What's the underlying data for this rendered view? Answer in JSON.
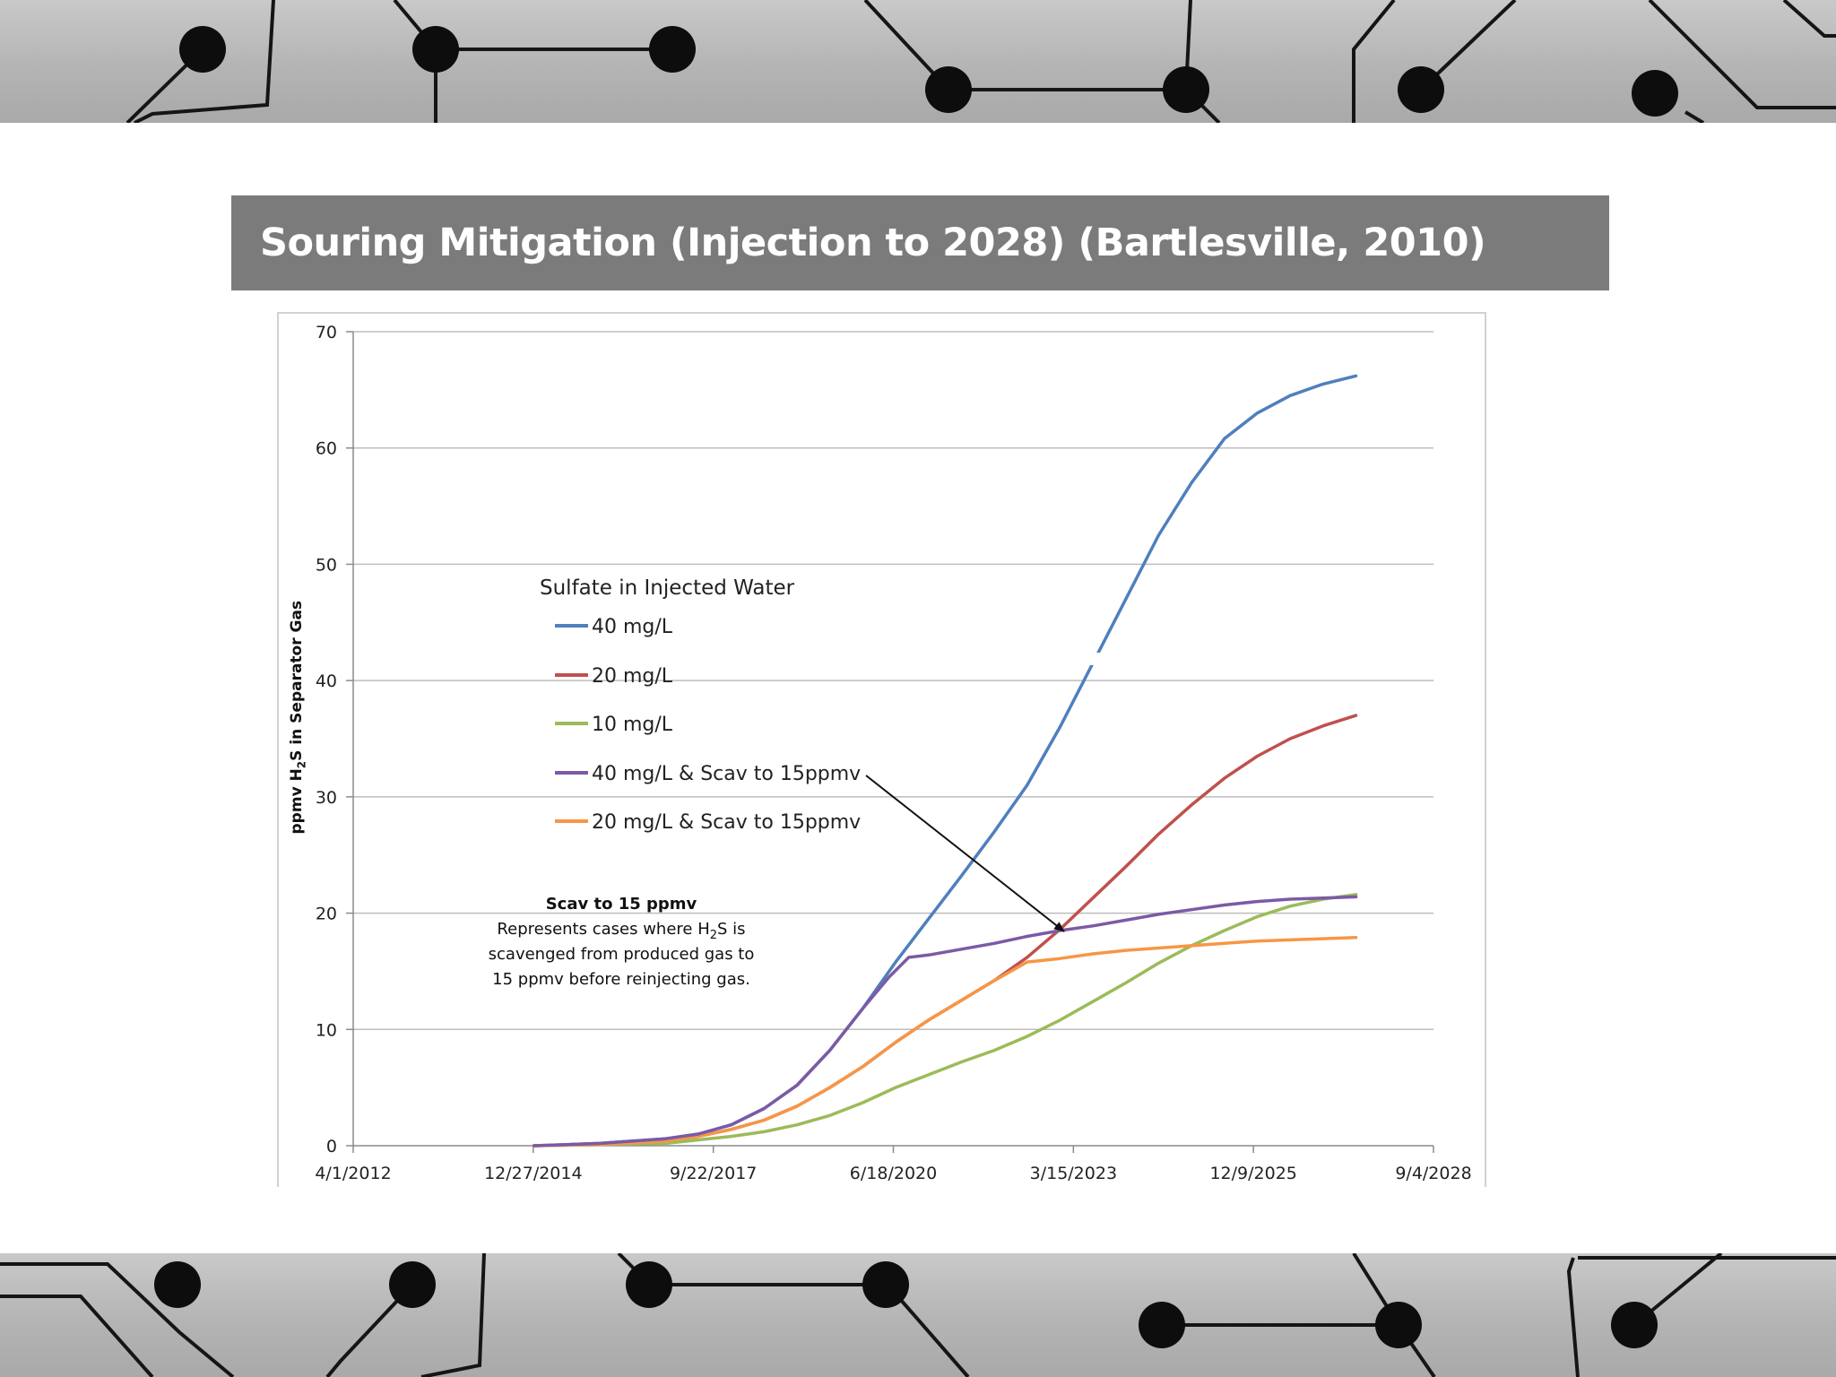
{
  "slide": {
    "title": "Souring Mitigation (Injection to 2028) (Bartlesville, 2010)"
  },
  "chart_data": {
    "type": "line",
    "ylabel_parts": [
      "ppmv H",
      "2",
      "S in Separator Gas"
    ],
    "xlabel": "",
    "x_ticks": [
      "4/1/2012",
      "12/27/2014",
      "9/22/2017",
      "6/18/2020",
      "3/15/2023",
      "12/9/2025",
      "9/4/2028"
    ],
    "x_range_years": [
      2012.25,
      2028.68
    ],
    "ylim": [
      0,
      70
    ],
    "y_ticks": [
      0,
      10,
      20,
      30,
      40,
      50,
      60,
      70
    ],
    "grid": true,
    "legend_title": "Sulfate in Injected Water",
    "series": [
      {
        "name": "40 mg/L",
        "color": "#4f7fbd",
        "x": [
          2015.0,
          2016.0,
          2017.0,
          2017.5,
          2018.0,
          2018.5,
          2019.0,
          2019.5,
          2020.0,
          2020.5,
          2021.0,
          2021.5,
          2022.0,
          2022.5,
          2023.0,
          2023.5,
          2024.0,
          2024.5,
          2025.0,
          2025.5,
          2026.0,
          2026.5,
          2027.0,
          2027.5
        ],
        "y": [
          0,
          0.2,
          0.6,
          1.0,
          1.8,
          3.2,
          5.2,
          8.2,
          11.8,
          15.8,
          19.5,
          23.2,
          27.0,
          31.0,
          36.0,
          41.5,
          47.0,
          52.5,
          57.0,
          60.8,
          63.0,
          64.5,
          65.5,
          66.2
        ]
      },
      {
        "name": "20 mg/L",
        "color": "#c0504d",
        "x": [
          2015.0,
          2016.0,
          2017.0,
          2017.5,
          2018.0,
          2018.5,
          2019.0,
          2019.5,
          2020.0,
          2020.5,
          2021.0,
          2021.5,
          2022.0,
          2022.5,
          2023.0,
          2023.5,
          2024.0,
          2024.5,
          2025.0,
          2025.5,
          2026.0,
          2026.5,
          2027.0,
          2027.5
        ],
        "y": [
          0,
          0.1,
          0.4,
          0.8,
          1.4,
          2.2,
          3.4,
          5.0,
          6.8,
          8.9,
          10.8,
          12.5,
          14.2,
          16.2,
          18.6,
          21.3,
          24.0,
          26.8,
          29.3,
          31.6,
          33.5,
          35.0,
          36.1,
          37.0
        ]
      },
      {
        "name": "10 mg/L",
        "color": "#9bbb59",
        "x": [
          2015.0,
          2016.0,
          2017.0,
          2017.5,
          2018.0,
          2018.5,
          2019.0,
          2019.5,
          2020.0,
          2020.5,
          2021.0,
          2021.5,
          2022.0,
          2022.5,
          2023.0,
          2023.5,
          2024.0,
          2024.5,
          2025.0,
          2025.5,
          2026.0,
          2026.5,
          2027.0,
          2027.5
        ],
        "y": [
          0,
          0.1,
          0.2,
          0.5,
          0.8,
          1.2,
          1.8,
          2.6,
          3.7,
          5.0,
          6.1,
          7.2,
          8.2,
          9.4,
          10.8,
          12.4,
          14.0,
          15.7,
          17.2,
          18.5,
          19.7,
          20.6,
          21.2,
          21.6
        ]
      },
      {
        "name": "40 mg/L & Scav to 15ppmv",
        "color": "#7b5aa6",
        "x": [
          2015.0,
          2016.0,
          2017.0,
          2017.5,
          2018.0,
          2018.5,
          2019.0,
          2019.5,
          2020.0,
          2020.4,
          2020.7,
          2021.0,
          2021.5,
          2022.0,
          2022.5,
          2023.0,
          2023.5,
          2024.0,
          2024.5,
          2025.0,
          2025.5,
          2026.0,
          2026.5,
          2027.0,
          2027.5
        ],
        "y": [
          0,
          0.2,
          0.6,
          1.0,
          1.8,
          3.2,
          5.2,
          8.2,
          11.8,
          14.5,
          16.2,
          16.4,
          16.9,
          17.4,
          18.0,
          18.5,
          18.9,
          19.4,
          19.9,
          20.3,
          20.7,
          21.0,
          21.2,
          21.3,
          21.4
        ]
      },
      {
        "name": "20 mg/L & Scav to 15ppmv",
        "color": "#f79646",
        "x": [
          2015.0,
          2016.0,
          2017.0,
          2017.5,
          2018.0,
          2018.5,
          2019.0,
          2019.5,
          2020.0,
          2020.5,
          2021.0,
          2021.5,
          2022.0,
          2022.5,
          2023.0,
          2023.5,
          2024.0,
          2024.5,
          2025.0,
          2025.5,
          2026.0,
          2026.5,
          2027.0,
          2027.5
        ],
        "y": [
          0,
          0.1,
          0.4,
          0.8,
          1.4,
          2.2,
          3.4,
          5.0,
          6.8,
          8.9,
          10.8,
          12.5,
          14.2,
          15.8,
          16.1,
          16.5,
          16.8,
          17.0,
          17.2,
          17.4,
          17.6,
          17.7,
          17.8,
          17.9
        ]
      }
    ],
    "annotation": {
      "title": "Scav to 15 ppmv",
      "line1_parts": [
        "Represents cases where H",
        "2",
        "S is"
      ],
      "line2": "scavenged from produced gas to",
      "line3": "15 ppmv before reinjecting gas."
    }
  }
}
